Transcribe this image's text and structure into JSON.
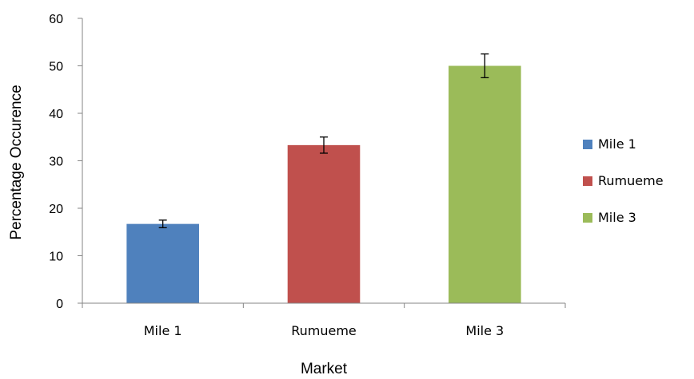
{
  "chart_data": {
    "type": "bar",
    "categories": [
      "Mile 1",
      "Rumueme",
      "Mile 3"
    ],
    "values": [
      16.7,
      33.3,
      50.0
    ],
    "error_bars": [
      0.8,
      1.7,
      2.5
    ],
    "colors": [
      "#4f81bd",
      "#c0504d",
      "#9bbb59"
    ],
    "title": "",
    "xlabel": "Market",
    "ylabel": "Percentage Occurence",
    "ylim": [
      0,
      60
    ],
    "yticks": [
      0,
      10,
      20,
      30,
      40,
      50,
      60
    ],
    "grid": false,
    "legend": {
      "placement": "right",
      "entries": [
        "Mile 1",
        "Rumueme",
        "Mile 3"
      ]
    }
  }
}
